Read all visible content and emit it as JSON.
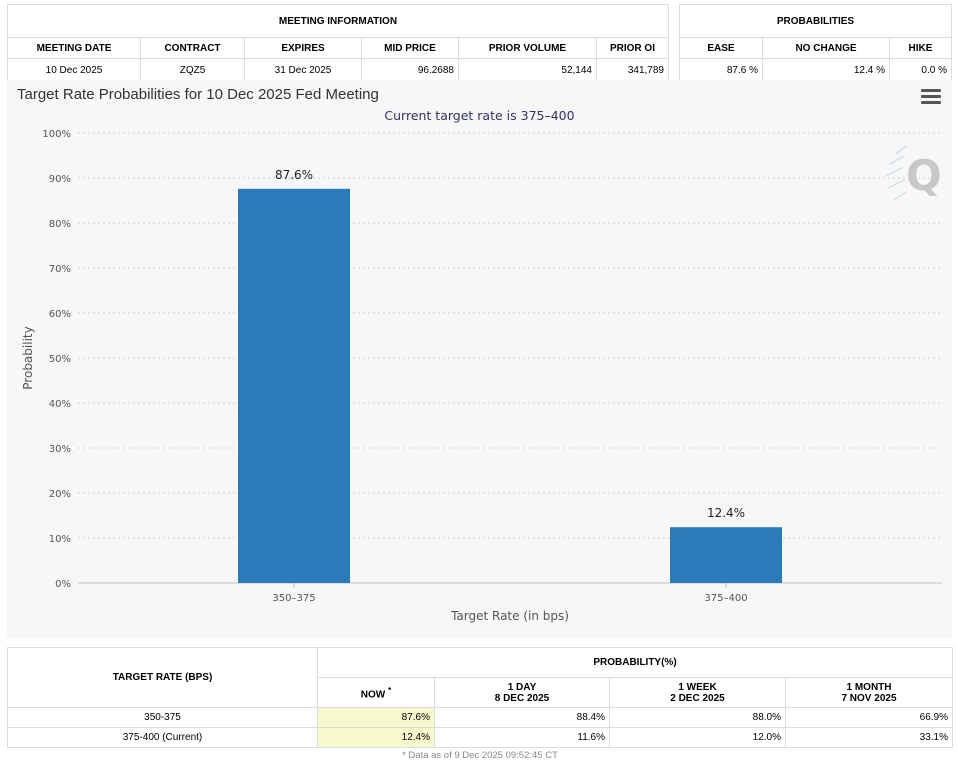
{
  "meeting_info": {
    "section_title": "MEETING INFORMATION",
    "columns": [
      "MEETING DATE",
      "CONTRACT",
      "EXPIRES",
      "MID PRICE",
      "PRIOR VOLUME",
      "PRIOR OI"
    ],
    "values": [
      "10 Dec 2025",
      "ZQZ5",
      "31 Dec 2025",
      "96.2688",
      "52,144",
      "341,789"
    ]
  },
  "probabilities": {
    "section_title": "PROBABILITIES",
    "columns": [
      "EASE",
      "NO CHANGE",
      "HIKE"
    ],
    "values": [
      "87.6 %",
      "12.4 %",
      "0.0 %"
    ]
  },
  "chart": {
    "title": "Target Rate Probabilities for 10 Dec 2025 Fed Meeting",
    "subtitle": "Current target rate is 375–400",
    "menu_icon": "hamburger-menu-icon",
    "watermark": "Q",
    "bar_color": "#2b7bb9"
  },
  "chart_data": {
    "type": "bar",
    "title": "Target Rate Probabilities for 10 Dec 2025 Fed Meeting",
    "subtitle": "Current target rate is 375–400",
    "categories": [
      "350–375",
      "375–400"
    ],
    "values": [
      87.6,
      12.4
    ],
    "data_labels": [
      "87.6%",
      "12.4%"
    ],
    "xlabel": "Target Rate (in bps)",
    "ylabel": "Probability",
    "ylim": [
      0,
      100
    ],
    "yticks": [
      0,
      10,
      20,
      30,
      40,
      50,
      60,
      70,
      80,
      90,
      100
    ],
    "ytick_suffix": "%",
    "grid": true
  },
  "history": {
    "col_target_rate": "TARGET RATE (BPS)",
    "group_header": "PROBABILITY(%)",
    "now_label": "NOW",
    "now_marker": "*",
    "periods": [
      {
        "line1": "1 DAY",
        "line2": "8 DEC 2025"
      },
      {
        "line1": "1 WEEK",
        "line2": "2 DEC 2025"
      },
      {
        "line1": "1 MONTH",
        "line2": "7 NOV 2025"
      }
    ],
    "rows": [
      {
        "rate": "350-375",
        "now": "87.6%",
        "values": [
          "88.4%",
          "88.0%",
          "66.9%"
        ]
      },
      {
        "rate": "375-400 (Current)",
        "now": "12.4%",
        "values": [
          "11.6%",
          "12.0%",
          "33.1%"
        ]
      }
    ],
    "footnote": "* Data as of 9 Dec 2025 09:52:45 CT"
  }
}
